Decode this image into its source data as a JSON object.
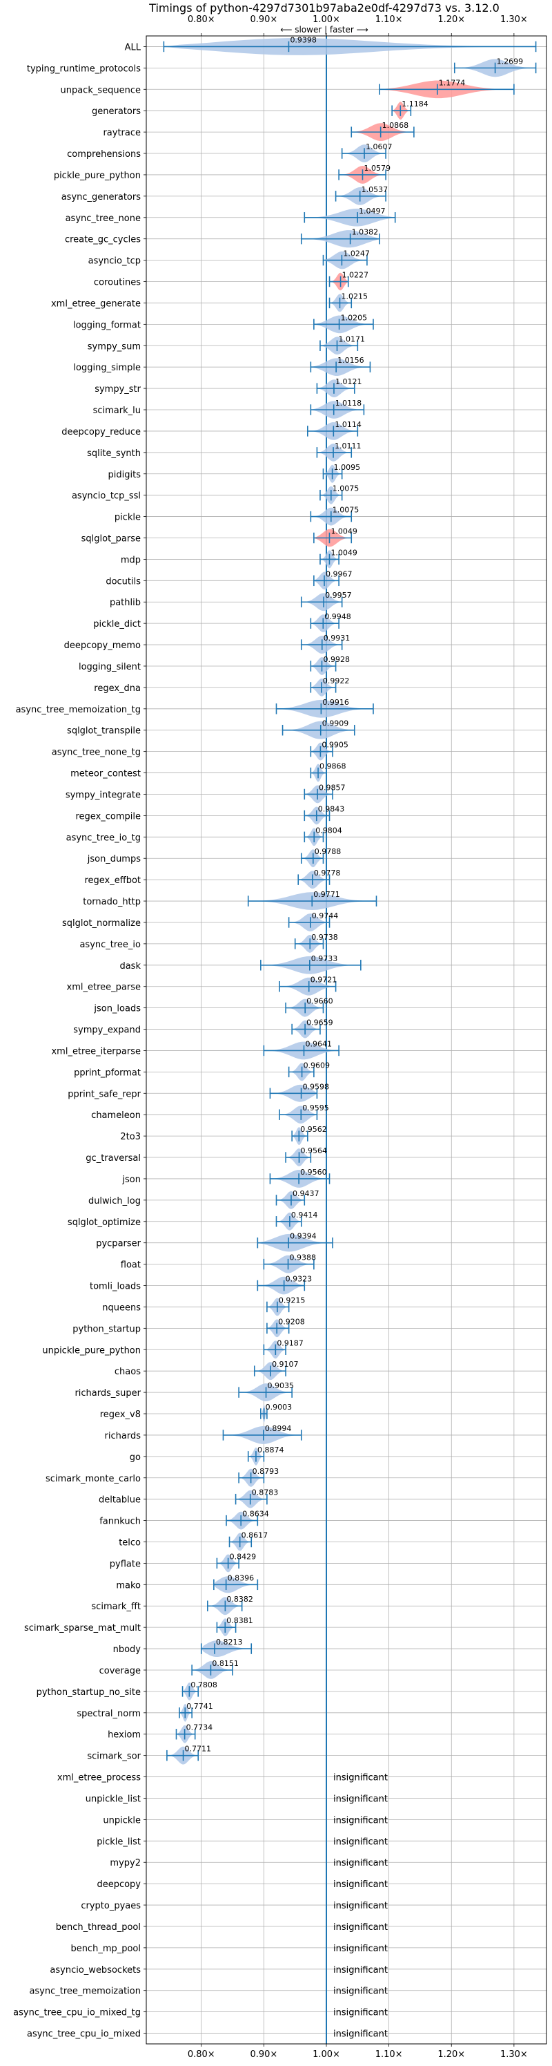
{
  "chart_data": {
    "type": "violin",
    "title": "Timings of python-4297d7301b97aba2e0df-4297d73 vs. 3.12.0",
    "subtitle": "⟵ slower | faster ⟶",
    "x_ticks": [
      0.8,
      0.9,
      1.0,
      1.1,
      1.2,
      1.3
    ],
    "x_tick_labels": [
      "0.80×",
      "0.90×",
      "1.00×",
      "1.10×",
      "1.20×",
      "1.30×"
    ],
    "xlim": [
      0.712,
      1.352
    ],
    "reference_line": 1.0,
    "significant_color": "#aec7e8",
    "regression_color": "#ff9896",
    "line_color": "#1f77b4",
    "insignificant_label": "insignificant",
    "benchmarks": [
      {
        "name": "ALL",
        "value": 0.9398,
        "label": "0.9398",
        "min": 0.74,
        "max": 1.335,
        "sig": "normal"
      },
      {
        "name": "typing_runtime_protocols",
        "value": 1.2699,
        "label": "1.2699",
        "min": 1.205,
        "max": 1.335,
        "sig": "normal"
      },
      {
        "name": "unpack_sequence",
        "value": 1.1774,
        "label": "1.1774",
        "min": 1.085,
        "max": 1.3,
        "sig": "slower"
      },
      {
        "name": "generators",
        "value": 1.1184,
        "label": "1.1184",
        "min": 1.105,
        "max": 1.135,
        "sig": "slower"
      },
      {
        "name": "raytrace",
        "value": 1.0868,
        "label": "1.0868",
        "min": 1.04,
        "max": 1.14,
        "sig": "slower"
      },
      {
        "name": "comprehensions",
        "value": 1.0607,
        "label": "1.0607",
        "min": 1.025,
        "max": 1.095,
        "sig": "normal"
      },
      {
        "name": "pickle_pure_python",
        "value": 1.0579,
        "label": "1.0579",
        "min": 1.02,
        "max": 1.095,
        "sig": "slower"
      },
      {
        "name": "async_generators",
        "value": 1.0537,
        "label": "1.0537",
        "min": 1.015,
        "max": 1.095,
        "sig": "normal"
      },
      {
        "name": "async_tree_none",
        "value": 1.0497,
        "label": "1.0497",
        "min": 0.965,
        "max": 1.11,
        "sig": "normal"
      },
      {
        "name": "create_gc_cycles",
        "value": 1.0382,
        "label": "1.0382",
        "min": 0.96,
        "max": 1.085,
        "sig": "normal"
      },
      {
        "name": "asyncio_tcp",
        "value": 1.0247,
        "label": "1.0247",
        "min": 0.995,
        "max": 1.065,
        "sig": "normal"
      },
      {
        "name": "coroutines",
        "value": 1.0227,
        "label": "1.0227",
        "min": 1.005,
        "max": 1.035,
        "sig": "slower"
      },
      {
        "name": "xml_etree_generate",
        "value": 1.0215,
        "label": "1.0215",
        "min": 1.005,
        "max": 1.04,
        "sig": "normal"
      },
      {
        "name": "logging_format",
        "value": 1.0205,
        "label": "1.0205",
        "min": 0.98,
        "max": 1.075,
        "sig": "normal"
      },
      {
        "name": "sympy_sum",
        "value": 1.0171,
        "label": "1.0171",
        "min": 0.99,
        "max": 1.05,
        "sig": "normal"
      },
      {
        "name": "logging_simple",
        "value": 1.0156,
        "label": "1.0156",
        "min": 0.975,
        "max": 1.07,
        "sig": "normal"
      },
      {
        "name": "sympy_str",
        "value": 1.0121,
        "label": "1.0121",
        "min": 0.985,
        "max": 1.045,
        "sig": "normal"
      },
      {
        "name": "scimark_lu",
        "value": 1.0118,
        "label": "1.0118",
        "min": 0.975,
        "max": 1.06,
        "sig": "normal"
      },
      {
        "name": "deepcopy_reduce",
        "value": 1.0114,
        "label": "1.0114",
        "min": 0.97,
        "max": 1.05,
        "sig": "normal"
      },
      {
        "name": "sqlite_synth",
        "value": 1.0111,
        "label": "1.0111",
        "min": 0.985,
        "max": 1.04,
        "sig": "normal"
      },
      {
        "name": "pidigits",
        "value": 1.0095,
        "label": "1.0095",
        "min": 0.995,
        "max": 1.025,
        "sig": "normal"
      },
      {
        "name": "asyncio_tcp_ssl",
        "value": 1.0075,
        "label": "1.0075",
        "min": 0.99,
        "max": 1.025,
        "sig": "normal"
      },
      {
        "name": "pickle",
        "value": 1.0075,
        "label": "1.0075",
        "min": 0.975,
        "max": 1.04,
        "sig": "normal"
      },
      {
        "name": "sqlglot_parse",
        "value": 1.0049,
        "label": "1.0049",
        "min": 0.98,
        "max": 1.04,
        "sig": "slower"
      },
      {
        "name": "mdp",
        "value": 1.0049,
        "label": "1.0049",
        "min": 0.99,
        "max": 1.02,
        "sig": "normal"
      },
      {
        "name": "docutils",
        "value": 0.9967,
        "label": "0.9967",
        "min": 0.98,
        "max": 1.02,
        "sig": "normal"
      },
      {
        "name": "pathlib",
        "value": 0.9957,
        "label": "0.9957",
        "min": 0.96,
        "max": 1.025,
        "sig": "normal"
      },
      {
        "name": "pickle_dict",
        "value": 0.9948,
        "label": "0.9948",
        "min": 0.975,
        "max": 1.02,
        "sig": "normal"
      },
      {
        "name": "deepcopy_memo",
        "value": 0.9931,
        "label": "0.9931",
        "min": 0.96,
        "max": 1.025,
        "sig": "normal"
      },
      {
        "name": "logging_silent",
        "value": 0.9928,
        "label": "0.9928",
        "min": 0.975,
        "max": 1.015,
        "sig": "normal"
      },
      {
        "name": "regex_dna",
        "value": 0.9922,
        "label": "0.9922",
        "min": 0.975,
        "max": 1.015,
        "sig": "normal"
      },
      {
        "name": "async_tree_memoization_tg",
        "value": 0.9916,
        "label": "0.9916",
        "min": 0.92,
        "max": 1.075,
        "sig": "normal"
      },
      {
        "name": "sqlglot_transpile",
        "value": 0.9909,
        "label": "0.9909",
        "min": 0.93,
        "max": 1.045,
        "sig": "normal"
      },
      {
        "name": "async_tree_none_tg",
        "value": 0.9905,
        "label": "0.9905",
        "min": 0.975,
        "max": 1.01,
        "sig": "normal"
      },
      {
        "name": "meteor_contest",
        "value": 0.9868,
        "label": "0.9868",
        "min": 0.975,
        "max": 1.0,
        "sig": "normal"
      },
      {
        "name": "sympy_integrate",
        "value": 0.9857,
        "label": "0.9857",
        "min": 0.965,
        "max": 1.01,
        "sig": "normal"
      },
      {
        "name": "regex_compile",
        "value": 0.9843,
        "label": "0.9843",
        "min": 0.965,
        "max": 1.005,
        "sig": "normal"
      },
      {
        "name": "async_tree_io_tg",
        "value": 0.9804,
        "label": "0.9804",
        "min": 0.965,
        "max": 0.995,
        "sig": "normal"
      },
      {
        "name": "json_dumps",
        "value": 0.9788,
        "label": "0.9788",
        "min": 0.96,
        "max": 0.995,
        "sig": "normal"
      },
      {
        "name": "regex_effbot",
        "value": 0.9778,
        "label": "0.9778",
        "min": 0.955,
        "max": 1.005,
        "sig": "normal"
      },
      {
        "name": "tornado_http",
        "value": 0.9771,
        "label": "0.9771",
        "min": 0.875,
        "max": 1.08,
        "sig": "normal"
      },
      {
        "name": "sqlglot_normalize",
        "value": 0.9744,
        "label": "0.9744",
        "min": 0.94,
        "max": 1.005,
        "sig": "normal"
      },
      {
        "name": "async_tree_io",
        "value": 0.9738,
        "label": "0.9738",
        "min": 0.95,
        "max": 0.995,
        "sig": "normal"
      },
      {
        "name": "dask",
        "value": 0.9733,
        "label": "0.9733",
        "min": 0.895,
        "max": 1.055,
        "sig": "normal"
      },
      {
        "name": "xml_etree_parse",
        "value": 0.9721,
        "label": "0.9721",
        "min": 0.925,
        "max": 1.015,
        "sig": "normal"
      },
      {
        "name": "json_loads",
        "value": 0.966,
        "label": "0.9660",
        "min": 0.935,
        "max": 0.995,
        "sig": "normal"
      },
      {
        "name": "sympy_expand",
        "value": 0.9659,
        "label": "0.9659",
        "min": 0.945,
        "max": 0.99,
        "sig": "normal"
      },
      {
        "name": "xml_etree_iterparse",
        "value": 0.9641,
        "label": "0.9641",
        "min": 0.9,
        "max": 1.02,
        "sig": "normal"
      },
      {
        "name": "pprint_pformat",
        "value": 0.9609,
        "label": "0.9609",
        "min": 0.94,
        "max": 0.98,
        "sig": "normal"
      },
      {
        "name": "pprint_safe_repr",
        "value": 0.9598,
        "label": "0.9598",
        "min": 0.91,
        "max": 0.985,
        "sig": "normal"
      },
      {
        "name": "chameleon",
        "value": 0.9595,
        "label": "0.9595",
        "min": 0.925,
        "max": 0.985,
        "sig": "normal"
      },
      {
        "name": "2to3",
        "value": 0.9562,
        "label": "0.9562",
        "min": 0.945,
        "max": 0.97,
        "sig": "normal"
      },
      {
        "name": "gc_traversal",
        "value": 0.9564,
        "label": "0.9564",
        "min": 0.935,
        "max": 0.975,
        "sig": "normal"
      },
      {
        "name": "json",
        "value": 0.956,
        "label": "0.9560",
        "min": 0.91,
        "max": 1.005,
        "sig": "normal"
      },
      {
        "name": "dulwich_log",
        "value": 0.9437,
        "label": "0.9437",
        "min": 0.92,
        "max": 0.965,
        "sig": "normal"
      },
      {
        "name": "sqlglot_optimize",
        "value": 0.9414,
        "label": "0.9414",
        "min": 0.92,
        "max": 0.96,
        "sig": "normal"
      },
      {
        "name": "pycparser",
        "value": 0.9394,
        "label": "0.9394",
        "min": 0.89,
        "max": 1.01,
        "sig": "normal"
      },
      {
        "name": "float",
        "value": 0.9388,
        "label": "0.9388",
        "min": 0.9,
        "max": 0.98,
        "sig": "normal"
      },
      {
        "name": "tomli_loads",
        "value": 0.9323,
        "label": "0.9323",
        "min": 0.89,
        "max": 0.965,
        "sig": "faster"
      },
      {
        "name": "nqueens",
        "value": 0.9215,
        "label": "0.9215",
        "min": 0.905,
        "max": 0.94,
        "sig": "normal"
      },
      {
        "name": "python_startup",
        "value": 0.9208,
        "label": "0.9208",
        "min": 0.905,
        "max": 0.94,
        "sig": "normal"
      },
      {
        "name": "unpickle_pure_python",
        "value": 0.9187,
        "label": "0.9187",
        "min": 0.9,
        "max": 0.935,
        "sig": "faster"
      },
      {
        "name": "chaos",
        "value": 0.9107,
        "label": "0.9107",
        "min": 0.885,
        "max": 0.935,
        "sig": "faster"
      },
      {
        "name": "richards_super",
        "value": 0.9035,
        "label": "0.9035",
        "min": 0.86,
        "max": 0.945,
        "sig": "faster"
      },
      {
        "name": "regex_v8",
        "value": 0.9003,
        "label": "0.9003",
        "min": 0.895,
        "max": 0.905,
        "sig": "normal"
      },
      {
        "name": "richards",
        "value": 0.8994,
        "label": "0.8994",
        "min": 0.835,
        "max": 0.96,
        "sig": "faster"
      },
      {
        "name": "go",
        "value": 0.8874,
        "label": "0.8874",
        "min": 0.875,
        "max": 0.9,
        "sig": "faster"
      },
      {
        "name": "scimark_monte_carlo",
        "value": 0.8793,
        "label": "0.8793",
        "min": 0.86,
        "max": 0.9,
        "sig": "normal"
      },
      {
        "name": "deltablue",
        "value": 0.8783,
        "label": "0.8783",
        "min": 0.855,
        "max": 0.905,
        "sig": "faster"
      },
      {
        "name": "fannkuch",
        "value": 0.8634,
        "label": "0.8634",
        "min": 0.84,
        "max": 0.89,
        "sig": "normal"
      },
      {
        "name": "telco",
        "value": 0.8617,
        "label": "0.8617",
        "min": 0.845,
        "max": 0.88,
        "sig": "normal"
      },
      {
        "name": "pyflate",
        "value": 0.8429,
        "label": "0.8429",
        "min": 0.825,
        "max": 0.86,
        "sig": "normal"
      },
      {
        "name": "mako",
        "value": 0.8396,
        "label": "0.8396",
        "min": 0.82,
        "max": 0.89,
        "sig": "normal"
      },
      {
        "name": "scimark_fft",
        "value": 0.8382,
        "label": "0.8382",
        "min": 0.81,
        "max": 0.865,
        "sig": "normal"
      },
      {
        "name": "scimark_sparse_mat_mult",
        "value": 0.8381,
        "label": "0.8381",
        "min": 0.825,
        "max": 0.855,
        "sig": "normal"
      },
      {
        "name": "nbody",
        "value": 0.8213,
        "label": "0.8213",
        "min": 0.8,
        "max": 0.88,
        "sig": "faster"
      },
      {
        "name": "coverage",
        "value": 0.8151,
        "label": "0.8151",
        "min": 0.785,
        "max": 0.85,
        "sig": "normal"
      },
      {
        "name": "python_startup_no_site",
        "value": 0.7808,
        "label": "0.7808",
        "min": 0.77,
        "max": 0.795,
        "sig": "normal"
      },
      {
        "name": "spectral_norm",
        "value": 0.7741,
        "label": "0.7741",
        "min": 0.765,
        "max": 0.785,
        "sig": "normal"
      },
      {
        "name": "hexiom",
        "value": 0.7734,
        "label": "0.7734",
        "min": 0.76,
        "max": 0.79,
        "sig": "faster"
      },
      {
        "name": "scimark_sor",
        "value": 0.7711,
        "label": "0.7711",
        "min": 0.745,
        "max": 0.795,
        "sig": "normal"
      },
      {
        "name": "xml_etree_process",
        "sig": "insignificant"
      },
      {
        "name": "unpickle_list",
        "sig": "insignificant"
      },
      {
        "name": "unpickle",
        "sig": "insignificant"
      },
      {
        "name": "pickle_list",
        "sig": "insignificant"
      },
      {
        "name": "mypy2",
        "sig": "insignificant"
      },
      {
        "name": "deepcopy",
        "sig": "insignificant"
      },
      {
        "name": "crypto_pyaes",
        "sig": "insignificant"
      },
      {
        "name": "bench_thread_pool",
        "sig": "insignificant"
      },
      {
        "name": "bench_mp_pool",
        "sig": "insignificant"
      },
      {
        "name": "asyncio_websockets",
        "sig": "insignificant"
      },
      {
        "name": "async_tree_memoization",
        "sig": "insignificant"
      },
      {
        "name": "async_tree_cpu_io_mixed_tg",
        "sig": "insignificant"
      },
      {
        "name": "async_tree_cpu_io_mixed",
        "sig": "insignificant"
      }
    ]
  }
}
